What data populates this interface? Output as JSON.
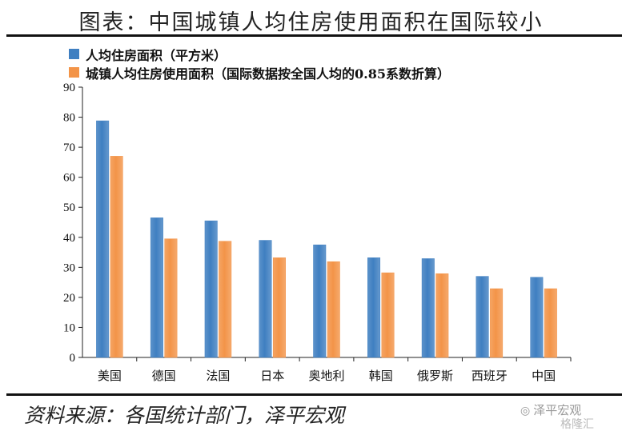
{
  "title": "图表：中国城镇人均住房使用面积在国际较小",
  "source": "资料来源：各国统计部门，泽平宏观",
  "watermark": {
    "brand": "泽平宏观",
    "sub": "格隆汇",
    "icon": "wechat-icon"
  },
  "colors": {
    "series1": "#3f7fc1",
    "series2": "#f39448"
  },
  "chart_data": {
    "type": "bar",
    "categories": [
      "美国",
      "德国",
      "法国",
      "日本",
      "奥地利",
      "韩国",
      "俄罗斯",
      "西班牙",
      "中国"
    ],
    "series": [
      {
        "name": "人均住房面积（平方米）",
        "values": [
          78.8,
          46.5,
          45.5,
          39.0,
          37.5,
          33.2,
          32.9,
          27.0,
          26.7
        ]
      },
      {
        "name": "城镇人均住房使用面积（国际数据按全国人均的0.85系数折算）",
        "values": [
          67.0,
          39.5,
          38.7,
          33.2,
          31.9,
          28.2,
          27.9,
          22.9,
          22.9
        ]
      }
    ],
    "ylim": [
      0,
      90
    ],
    "yticks": [
      0,
      10,
      20,
      30,
      40,
      50,
      60,
      70,
      80,
      90
    ],
    "title": "",
    "xlabel": "",
    "ylabel": "",
    "grid": false,
    "legend_position": "top-left"
  }
}
